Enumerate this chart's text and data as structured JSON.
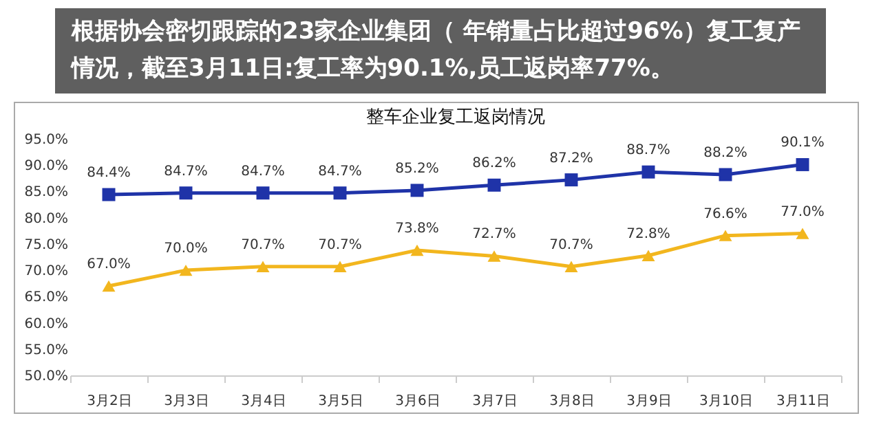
{
  "chart_data": {
    "type": "line",
    "title": "整车企业复工返岗情况",
    "annotations": [
      "根据协会密切跟踪的23家企业集团（ 年销量占比超过96%）复工复产情况，截至3月11日:复工率为90.1%,员工返岗率77%。"
    ],
    "categories": [
      "3月2日",
      "3月3日",
      "3月4日",
      "3月5日",
      "3月6日",
      "3月7日",
      "3月8日",
      "3月9日",
      "3月10日",
      "3月11日"
    ],
    "series": [
      {
        "color": "#1f33a8",
        "marker": "square",
        "values": [
          84.4,
          84.7,
          84.7,
          84.7,
          85.2,
          86.2,
          87.2,
          88.7,
          88.2,
          90.1
        ],
        "value_labels": [
          "84.4%",
          "84.7%",
          "84.7%",
          "84.7%",
          "85.2%",
          "86.2%",
          "87.2%",
          "88.7%",
          "88.2%",
          "90.1%"
        ]
      },
      {
        "color": "#f2b61e",
        "marker": "triangle",
        "values": [
          67.0,
          70.0,
          70.7,
          70.7,
          73.8,
          72.7,
          70.7,
          72.8,
          76.6,
          77.0
        ],
        "value_labels": [
          "67.0%",
          "70.0%",
          "70.7%",
          "70.7%",
          "73.8%",
          "72.7%",
          "70.7%",
          "72.8%",
          "76.6%",
          "77.0%"
        ]
      }
    ],
    "ylim": [
      50,
      95
    ],
    "yticks": [
      {
        "value": 50,
        "label": "50.0%"
      },
      {
        "value": 55,
        "label": "55.0%"
      },
      {
        "value": 60,
        "label": "60.0%"
      },
      {
        "value": 65,
        "label": "65.0%"
      },
      {
        "value": 70,
        "label": "70.0%"
      },
      {
        "value": 75,
        "label": "75.0%"
      },
      {
        "value": 80,
        "label": "80.0%"
      },
      {
        "value": 85,
        "label": "85.0%"
      },
      {
        "value": 90,
        "label": "90.0%"
      },
      {
        "value": 95,
        "label": "95.0%"
      }
    ],
    "grid": false
  }
}
